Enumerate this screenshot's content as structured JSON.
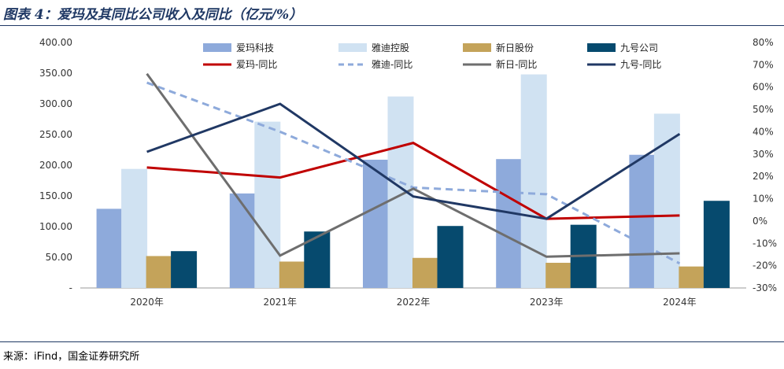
{
  "title": "图表 4：爱玛及其同比公司收入及同比（亿元/%）",
  "source": "来源：iFind，国金证券研究所",
  "chart_data": {
    "type": "bar",
    "categories": [
      "2020年",
      "2021年",
      "2022年",
      "2023年",
      "2024年"
    ],
    "left_axis": {
      "ylim": [
        0,
        400
      ],
      "ticks": [
        "-",
        "50.00",
        "100.00",
        "150.00",
        "200.00",
        "250.00",
        "300.00",
        "350.00",
        "400.00"
      ]
    },
    "right_axis": {
      "ylim": [
        -30,
        80
      ],
      "ticks": [
        "-30%",
        "-20%",
        "-10%",
        "0%",
        "10%",
        "20%",
        "30%",
        "40%",
        "50%",
        "60%",
        "70%",
        "80%"
      ]
    },
    "bar_series": [
      {
        "name": "爱玛科技",
        "color": "#8eaadb",
        "values": [
          129,
          154,
          209,
          210,
          217
        ]
      },
      {
        "name": "雅迪控股",
        "color": "#d0e2f2",
        "values": [
          194,
          271,
          312,
          348,
          284
        ]
      },
      {
        "name": "新日股份",
        "color": "#c4a35a",
        "values": [
          52,
          43,
          49,
          41,
          35
        ]
      },
      {
        "name": "九号公司",
        "color": "#064a6e",
        "values": [
          60,
          92,
          101,
          103,
          142
        ]
      }
    ],
    "line_series": [
      {
        "name": "爱玛-同比",
        "color": "#c00000",
        "dash": false,
        "values": [
          24,
          19.5,
          35,
          1,
          2.5
        ]
      },
      {
        "name": "雅迪-同比",
        "color": "#8eaadb",
        "dash": true,
        "values": [
          62,
          40,
          15,
          12,
          -19
        ]
      },
      {
        "name": "新日-同比",
        "color": "#6e6e6e",
        "dash": false,
        "values": [
          66,
          -15.5,
          14.5,
          -16,
          -14.5
        ]
      },
      {
        "name": "九号-同比",
        "color": "#203864",
        "dash": false,
        "values": [
          31,
          52.5,
          11,
          1,
          39
        ]
      }
    ],
    "grid": false,
    "legend_position": "top"
  }
}
